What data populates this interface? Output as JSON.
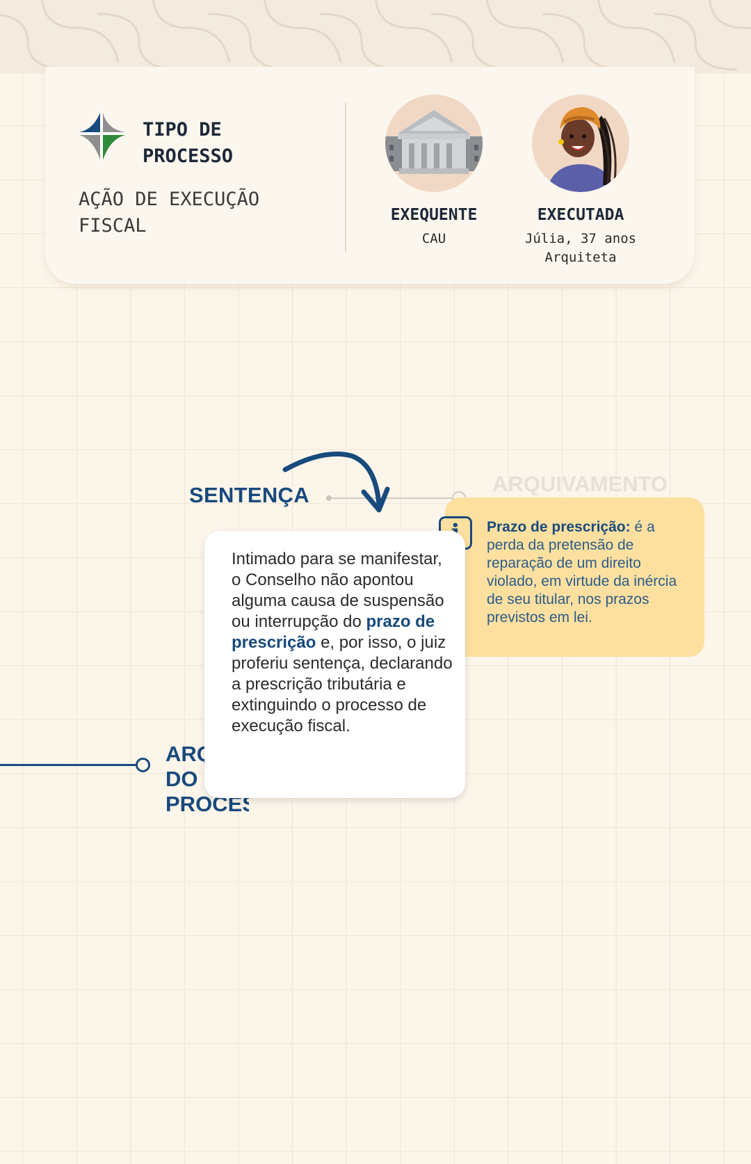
{
  "header": {
    "tipo_title": "TIPO DE PROCESSO",
    "tipo_value": "AÇÃO DE EXECUÇÃO FISCAL"
  },
  "parties": {
    "exequente": {
      "role": "EXEQUENTE",
      "detail": "CAU",
      "icon": "courthouse-building-icon"
    },
    "executada": {
      "role": "EXECUTADA",
      "detail_line1": "Júlia, 37 anos",
      "detail_line2": "Arquiteta",
      "icon": "woman-avatar-icon"
    }
  },
  "timeline": {
    "current_step": "SENTENÇA",
    "next_step": "ARQUIVAMENTO",
    "bottom_step": "ARQUIVAMENTO DO PROCESSO"
  },
  "main_card": {
    "text_1": "Intimado para se manifestar, o Conselho não apontou alguma causa de suspensão ou interrupção do ",
    "highlight": "prazo de prescrição",
    "text_2": " e, por isso, o juiz proferiu sentença, declarando a prescrição tributária e extinguindo o processo de execução fiscal."
  },
  "info_card": {
    "icon": "info-icon",
    "term": "Prazo de prescrição:",
    "definition": " é a perda da pretensão de reparação de um direito violado, em virtude da inércia de seu titular, nos prazos previstos em lei."
  },
  "colors": {
    "brand_blue": "#184a7d",
    "info_yellow": "#fde0a0",
    "background": "#fcf5ea"
  }
}
